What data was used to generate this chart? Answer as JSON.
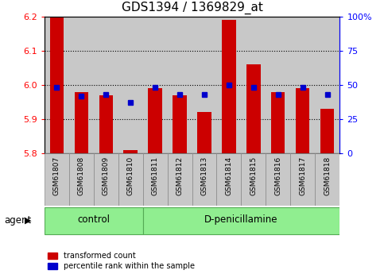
{
  "title": "GDS1394 / 1369829_at",
  "samples": [
    "GSM61807",
    "GSM61808",
    "GSM61809",
    "GSM61810",
    "GSM61811",
    "GSM61812",
    "GSM61813",
    "GSM61814",
    "GSM61815",
    "GSM61816",
    "GSM61817",
    "GSM61818"
  ],
  "red_values": [
    6.2,
    5.98,
    5.97,
    5.81,
    5.99,
    5.97,
    5.92,
    6.19,
    6.06,
    5.98,
    5.99,
    5.93
  ],
  "blue_percentiles": [
    48,
    42,
    43,
    37,
    48,
    43,
    43,
    50,
    48,
    43,
    48,
    43
  ],
  "ymin": 5.8,
  "ymax": 6.2,
  "yticks": [
    5.8,
    5.9,
    6.0,
    6.1,
    6.2
  ],
  "right_yticks": [
    0,
    25,
    50,
    75,
    100
  ],
  "right_yticklabels": [
    "0",
    "25",
    "50",
    "75",
    "100%"
  ],
  "control_indices": [
    0,
    1,
    2,
    3
  ],
  "treatment_indices": [
    4,
    5,
    6,
    7,
    8,
    9,
    10,
    11
  ],
  "control_label": "control",
  "treatment_label": "D-penicillamine",
  "agent_label": "agent",
  "bar_color": "#CC0000",
  "dot_color": "#0000CC",
  "bar_width": 0.55,
  "group_bg_color": "#90EE90",
  "sample_bg_color": "#C8C8C8",
  "legend_red": "transformed count",
  "legend_blue": "percentile rank within the sample",
  "title_fontsize": 11,
  "tick_fontsize": 8,
  "label_fontsize": 8.5
}
